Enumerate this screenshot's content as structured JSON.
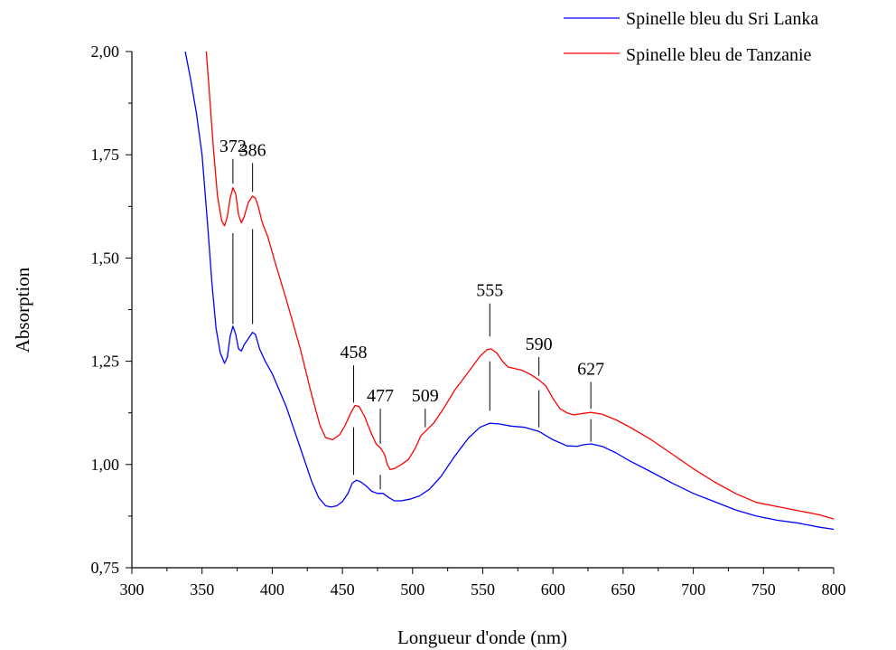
{
  "chart_data": {
    "type": "line",
    "title": "",
    "xlabel": "Longueur d'onde (nm)",
    "ylabel": "Absorption",
    "xlim": [
      300,
      800
    ],
    "ylim": [
      0.75,
      2.0
    ],
    "x_ticks": [
      300,
      350,
      400,
      450,
      500,
      550,
      600,
      650,
      700,
      750,
      800
    ],
    "x_tick_labels": [
      "300",
      "350",
      "400",
      "450",
      "500",
      "550",
      "600",
      "650",
      "700",
      "750",
      "800"
    ],
    "y_ticks": [
      0.75,
      1.0,
      1.25,
      1.5,
      1.75,
      2.0
    ],
    "y_tick_labels": [
      "0,75",
      "1,00",
      "1,25",
      "1,50",
      "1,75",
      "2,00"
    ],
    "grid": false,
    "legend_position": "top-right",
    "series": [
      {
        "name": "Spinelle bleu du Sri Lanka",
        "color": "#0000ff",
        "points": [
          [
            338,
            2.0
          ],
          [
            342,
            1.93
          ],
          [
            346,
            1.85
          ],
          [
            350,
            1.75
          ],
          [
            354,
            1.58
          ],
          [
            357,
            1.44
          ],
          [
            360,
            1.33
          ],
          [
            363,
            1.27
          ],
          [
            366,
            1.245
          ],
          [
            368,
            1.26
          ],
          [
            370,
            1.31
          ],
          [
            372,
            1.335
          ],
          [
            374,
            1.315
          ],
          [
            376,
            1.28
          ],
          [
            378,
            1.275
          ],
          [
            380,
            1.29
          ],
          [
            383,
            1.305
          ],
          [
            386,
            1.32
          ],
          [
            388,
            1.315
          ],
          [
            391,
            1.28
          ],
          [
            395,
            1.25
          ],
          [
            400,
            1.22
          ],
          [
            410,
            1.14
          ],
          [
            420,
            1.04
          ],
          [
            428,
            0.96
          ],
          [
            433,
            0.92
          ],
          [
            438,
            0.9
          ],
          [
            442,
            0.897
          ],
          [
            446,
            0.9
          ],
          [
            450,
            0.91
          ],
          [
            454,
            0.93
          ],
          [
            457,
            0.955
          ],
          [
            460,
            0.962
          ],
          [
            463,
            0.958
          ],
          [
            467,
            0.948
          ],
          [
            471,
            0.935
          ],
          [
            475,
            0.93
          ],
          [
            479,
            0.93
          ],
          [
            483,
            0.92
          ],
          [
            487,
            0.912
          ],
          [
            492,
            0.912
          ],
          [
            498,
            0.916
          ],
          [
            505,
            0.924
          ],
          [
            512,
            0.94
          ],
          [
            520,
            0.97
          ],
          [
            530,
            1.02
          ],
          [
            540,
            1.065
          ],
          [
            548,
            1.09
          ],
          [
            555,
            1.1
          ],
          [
            562,
            1.098
          ],
          [
            570,
            1.093
          ],
          [
            580,
            1.09
          ],
          [
            590,
            1.08
          ],
          [
            600,
            1.06
          ],
          [
            610,
            1.045
          ],
          [
            617,
            1.044
          ],
          [
            622,
            1.048
          ],
          [
            627,
            1.05
          ],
          [
            635,
            1.044
          ],
          [
            645,
            1.028
          ],
          [
            655,
            1.008
          ],
          [
            670,
            0.982
          ],
          [
            685,
            0.955
          ],
          [
            700,
            0.93
          ],
          [
            715,
            0.91
          ],
          [
            730,
            0.89
          ],
          [
            745,
            0.875
          ],
          [
            760,
            0.865
          ],
          [
            775,
            0.858
          ],
          [
            790,
            0.848
          ],
          [
            800,
            0.843
          ]
        ]
      },
      {
        "name": "Spinelle bleu de Tanzanie",
        "color": "#ff0000",
        "points": [
          [
            353,
            2.0
          ],
          [
            355,
            1.91
          ],
          [
            358,
            1.77
          ],
          [
            361,
            1.65
          ],
          [
            364,
            1.59
          ],
          [
            366,
            1.578
          ],
          [
            368,
            1.6
          ],
          [
            370,
            1.645
          ],
          [
            372,
            1.67
          ],
          [
            374,
            1.655
          ],
          [
            376,
            1.605
          ],
          [
            378,
            1.585
          ],
          [
            380,
            1.6
          ],
          [
            383,
            1.635
          ],
          [
            386,
            1.65
          ],
          [
            388,
            1.645
          ],
          [
            390,
            1.625
          ],
          [
            393,
            1.585
          ],
          [
            397,
            1.55
          ],
          [
            402,
            1.49
          ],
          [
            410,
            1.4
          ],
          [
            420,
            1.28
          ],
          [
            428,
            1.17
          ],
          [
            434,
            1.095
          ],
          [
            438,
            1.065
          ],
          [
            443,
            1.06
          ],
          [
            448,
            1.072
          ],
          [
            452,
            1.095
          ],
          [
            456,
            1.125
          ],
          [
            459,
            1.143
          ],
          [
            462,
            1.14
          ],
          [
            466,
            1.115
          ],
          [
            470,
            1.08
          ],
          [
            474,
            1.05
          ],
          [
            477,
            1.04
          ],
          [
            480,
            1.025
          ],
          [
            482,
            1.0
          ],
          [
            484,
            0.988
          ],
          [
            487,
            0.99
          ],
          [
            492,
            1.0
          ],
          [
            497,
            1.012
          ],
          [
            502,
            1.04
          ],
          [
            506,
            1.07
          ],
          [
            509,
            1.08
          ],
          [
            515,
            1.1
          ],
          [
            522,
            1.135
          ],
          [
            530,
            1.18
          ],
          [
            540,
            1.225
          ],
          [
            548,
            1.262
          ],
          [
            553,
            1.278
          ],
          [
            556,
            1.28
          ],
          [
            560,
            1.27
          ],
          [
            564,
            1.25
          ],
          [
            568,
            1.236
          ],
          [
            573,
            1.232
          ],
          [
            578,
            1.228
          ],
          [
            583,
            1.22
          ],
          [
            590,
            1.205
          ],
          [
            595,
            1.19
          ],
          [
            600,
            1.16
          ],
          [
            605,
            1.135
          ],
          [
            610,
            1.125
          ],
          [
            615,
            1.12
          ],
          [
            620,
            1.123
          ],
          [
            627,
            1.126
          ],
          [
            635,
            1.122
          ],
          [
            645,
            1.108
          ],
          [
            655,
            1.09
          ],
          [
            670,
            1.06
          ],
          [
            685,
            1.025
          ],
          [
            700,
            0.99
          ],
          [
            715,
            0.958
          ],
          [
            730,
            0.93
          ],
          [
            745,
            0.908
          ],
          [
            760,
            0.898
          ],
          [
            775,
            0.888
          ],
          [
            790,
            0.878
          ],
          [
            800,
            0.868
          ]
        ]
      }
    ],
    "peaks": [
      {
        "label": "372",
        "x": 372,
        "top": [
          1.68,
          1.74
        ],
        "bottom": [
          1.34,
          1.56
        ]
      },
      {
        "label": "386",
        "x": 386,
        "top": [
          1.66,
          1.73
        ],
        "bottom": [
          1.34,
          1.57
        ]
      },
      {
        "label": "458",
        "x": 458,
        "top": [
          1.15,
          1.24
        ],
        "bottom": [
          0.975,
          1.09
        ]
      },
      {
        "label": "477",
        "x": 477,
        "top": [
          1.05,
          1.135
        ],
        "bottom": [
          0.94,
          0.975
        ]
      },
      {
        "label": "509",
        "x": 509,
        "top": [
          1.09,
          1.135
        ],
        "bottom": null
      },
      {
        "label": "555",
        "x": 555,
        "top": [
          1.31,
          1.39
        ],
        "bottom": [
          1.13,
          1.25
        ]
      },
      {
        "label": "590",
        "x": 590,
        "top": [
          1.215,
          1.26
        ],
        "bottom": [
          1.09,
          1.18
        ]
      },
      {
        "label": "627",
        "x": 627,
        "top": [
          1.135,
          1.2
        ],
        "bottom": [
          1.055,
          1.11
        ]
      }
    ]
  }
}
